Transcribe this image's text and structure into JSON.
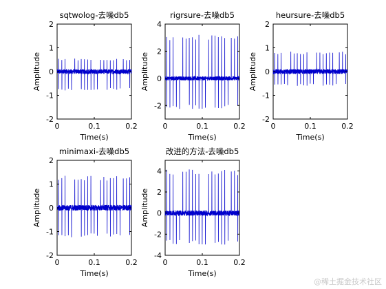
{
  "figure": {
    "background": "#ffffff",
    "axes_color": "#000000",
    "line_color": "#0000cc"
  },
  "chart_data": [
    {
      "type": "line",
      "title": "sqtwolog-去噪db5",
      "xlabel": "Time(s)",
      "ylabel": "Amplitude",
      "xlim": [
        0,
        0.2
      ],
      "ylim": [
        -2,
        2
      ],
      "xticks": [
        0,
        0.1,
        0.2
      ],
      "xtick_labels": [
        "0",
        "0.1",
        "0.2"
      ],
      "yticks": [
        -2,
        -1,
        0,
        1,
        2
      ],
      "ytick_labels": [
        "-2",
        "-1",
        "0",
        "1",
        "2"
      ],
      "grid": false,
      "series": [
        {
          "spike_count": 23,
          "spike_positive_amplitude": 0.55,
          "spike_negative_amplitude": -0.8,
          "baseline_noise_amplitude": 0.1
        }
      ]
    },
    {
      "type": "line",
      "title": "rigrsure-去噪db5",
      "xlabel": "Time(s)",
      "ylabel": "Amplitude",
      "xlim": [
        0,
        0.2
      ],
      "ylim": [
        -3,
        4
      ],
      "xticks": [
        0,
        0.1,
        0.2
      ],
      "xtick_labels": [
        "0",
        "0.1",
        "0.2"
      ],
      "yticks": [
        -2,
        0,
        2,
        4
      ],
      "ytick_labels": [
        "-2",
        "0",
        "2",
        "4"
      ],
      "grid": false,
      "series": [
        {
          "spike_count": 23,
          "spike_positive_amplitude": 3.2,
          "spike_negative_amplitude": -2.3,
          "baseline_noise_amplitude": 0.15
        }
      ]
    },
    {
      "type": "line",
      "title": "heursure-去噪db5",
      "xlabel": "Time(s)",
      "ylabel": "Amplitude",
      "xlim": [
        0,
        0.2
      ],
      "ylim": [
        -2,
        2
      ],
      "xticks": [
        0,
        0.1,
        0.2
      ],
      "xtick_labels": [
        "0",
        "0.1",
        "0.2"
      ],
      "yticks": [
        -2,
        -1,
        0,
        1,
        2
      ],
      "ytick_labels": [
        "-2",
        "-1",
        "0",
        "1",
        "2"
      ],
      "grid": false,
      "series": [
        {
          "spike_count": 23,
          "spike_positive_amplitude": 0.85,
          "spike_negative_amplitude": -0.6,
          "baseline_noise_amplitude": 0.1
        }
      ]
    },
    {
      "type": "line",
      "title": "minimaxi-去噪db5",
      "xlabel": "Time(s)",
      "ylabel": "Amplitude",
      "xlim": [
        0,
        0.2
      ],
      "ylim": [
        -2,
        2
      ],
      "xticks": [
        0,
        0.1,
        0.2
      ],
      "xtick_labels": [
        "0",
        "0.1",
        "0.2"
      ],
      "yticks": [
        -2,
        -1,
        0,
        1,
        2
      ],
      "ytick_labels": [
        "-2",
        "-1",
        "0",
        "1",
        "2"
      ],
      "grid": false,
      "series": [
        {
          "spike_count": 23,
          "spike_positive_amplitude": 1.35,
          "spike_negative_amplitude": -1.25,
          "baseline_noise_amplitude": 0.12
        }
      ]
    },
    {
      "type": "line",
      "title": "改进的方法-去噪db5",
      "xlabel": "Time(s)",
      "ylabel": "Amplitude",
      "xlim": [
        0,
        0.2
      ],
      "ylim": [
        -4,
        5
      ],
      "xticks": [
        0,
        0.1,
        0.2
      ],
      "xtick_labels": [
        "0",
        "0.1",
        "0.2"
      ],
      "yticks": [
        -4,
        -2,
        0,
        2,
        4
      ],
      "ytick_labels": [
        "-4",
        "-2",
        "0",
        "2",
        "4"
      ],
      "grid": false,
      "series": [
        {
          "spike_count": 23,
          "spike_positive_amplitude": 4.2,
          "spike_negative_amplitude": -3.0,
          "baseline_noise_amplitude": 0.25
        }
      ]
    }
  ],
  "watermark": "@稀土掘金技术社区"
}
